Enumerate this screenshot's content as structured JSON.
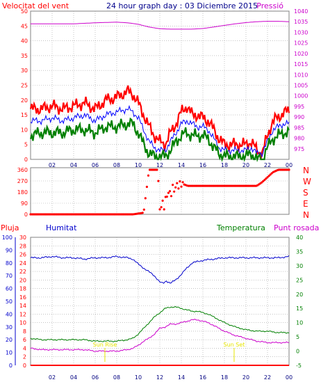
{
  "colors": {
    "background": "#ffffff",
    "panel_border": "#808080",
    "grid": "#a0a0a0",
    "wind_gust": "#ff0000",
    "wind_avg": "#0000ff",
    "wind_min": "#008000",
    "pressure": "#cc00cc",
    "direction": "#ff0000",
    "rain": "#ff0000",
    "humidity": "#0000cc",
    "temperature": "#008000",
    "dew_point": "#cc00cc",
    "sun_marker": "#e6e600",
    "title": "#00008b"
  },
  "chart_data": [
    {
      "id": "wind",
      "type": "line",
      "title": "24 hour graph day : 03 Diciembre 2015",
      "left_label": "Velocitat del vent",
      "right_label": "Pressió",
      "x_ticks": [
        "02",
        "04",
        "06",
        "08",
        "10",
        "12",
        "14",
        "16",
        "18",
        "20",
        "22",
        "00"
      ],
      "x_range_hours": [
        0,
        24
      ],
      "ylim_left": [
        0,
        50
      ],
      "y_ticks_left": [
        "0",
        "5",
        "10",
        "15",
        "20",
        "25",
        "30",
        "35",
        "40",
        "45",
        "50"
      ],
      "ylim_right": [
        970,
        1040
      ],
      "y_ticks_right": [
        "975",
        "980",
        "985",
        "990",
        "995",
        "1000",
        "1005",
        "1010",
        "1015",
        "1020",
        "1025",
        "1030",
        "1035",
        "1040"
      ],
      "grid": true,
      "series": [
        {
          "key": "gust",
          "hours": [
            0,
            1,
            2,
            3,
            4,
            5,
            6,
            7,
            8,
            9,
            9.5,
            10,
            10.5,
            11,
            11.5,
            12,
            12.5,
            13,
            13.5,
            14,
            14.5,
            15,
            15.5,
            16,
            16.5,
            17,
            17.5,
            18,
            19,
            20,
            20.5,
            21,
            21.5,
            22,
            22.5,
            23,
            23.5,
            24
          ],
          "values": [
            17,
            17,
            18,
            17,
            18,
            19,
            17,
            20,
            21,
            23,
            22,
            19,
            15,
            11,
            8,
            6,
            5,
            9,
            12,
            16,
            18,
            15,
            15,
            14,
            13,
            10,
            7,
            5,
            5,
            5,
            6,
            3,
            2,
            8,
            13,
            14,
            16,
            16
          ]
        },
        {
          "key": "avg",
          "hours": [
            0,
            1,
            2,
            3,
            4,
            5,
            6,
            7,
            8,
            9,
            9.5,
            10,
            10.5,
            11,
            11.5,
            12,
            12.5,
            13,
            13.5,
            14,
            14.5,
            15,
            15.5,
            16,
            16.5,
            17,
            17.5,
            18,
            19,
            20,
            20.5,
            21,
            21.5,
            22,
            22.5,
            23,
            23.5,
            24
          ],
          "values": [
            13,
            13,
            14,
            13,
            14,
            15,
            13,
            15,
            16,
            17,
            16,
            14,
            10,
            6,
            4,
            3,
            3,
            6,
            9,
            12,
            13,
            12,
            11,
            11,
            10,
            7,
            4,
            3,
            3,
            3,
            4,
            2,
            2,
            6,
            10,
            11,
            12,
            12
          ]
        },
        {
          "key": "min",
          "hours": [
            0,
            1,
            2,
            3,
            4,
            5,
            6,
            7,
            8,
            9,
            9.5,
            10,
            10.5,
            11,
            11.5,
            12,
            12.5,
            13,
            13.5,
            14,
            14.5,
            15,
            15.5,
            16,
            16.5,
            17,
            17.5,
            18,
            19,
            20,
            20.5,
            21,
            21.5,
            22,
            22.5,
            23,
            23.5,
            24
          ],
          "values": [
            8,
            9,
            9,
            9,
            10,
            10,
            9,
            11,
            11,
            12,
            12,
            9,
            5,
            2,
            1,
            1,
            1,
            3,
            6,
            8,
            9,
            8,
            8,
            8,
            7,
            4,
            2,
            1,
            1,
            1,
            2,
            0,
            0,
            4,
            7,
            8,
            9,
            9
          ]
        },
        {
          "key": "pressure",
          "axis": "right",
          "hours": [
            0,
            2,
            4,
            6,
            8,
            9,
            10,
            11,
            12,
            13,
            14,
            15,
            16,
            17,
            18,
            19,
            20,
            21,
            22,
            23,
            24
          ],
          "values": [
            1034,
            1034,
            1034,
            1034.5,
            1034.8,
            1034.5,
            1033.8,
            1032.5,
            1031.7,
            1031.5,
            1031.5,
            1031.5,
            1031.8,
            1032.5,
            1033.3,
            1034,
            1034.6,
            1035,
            1035.2,
            1035.2,
            1035
          ]
        }
      ]
    },
    {
      "id": "direction",
      "type": "scatter",
      "right_labels": [
        "N",
        "W",
        "S",
        "E",
        "N"
      ],
      "y_ticks_left": [
        "0",
        "90",
        "180",
        "270",
        "360"
      ],
      "ylim_left": [
        0,
        360
      ],
      "x_range_hours": [
        0,
        24
      ],
      "grid": true,
      "series": [
        {
          "key": "direction",
          "hours": [
            0,
            2,
            4,
            6,
            8,
            9.5,
            10.3,
            10.5,
            11,
            11.5,
            11.8,
            12,
            12.2,
            12.4,
            12.6,
            12.8,
            13,
            13.2,
            13.4,
            13.6,
            13.8,
            14,
            14.3,
            14.6,
            15,
            16,
            17,
            18,
            19,
            20,
            21,
            21.5,
            22,
            22.5,
            23,
            23.5,
            24
          ],
          "values": [
            0,
            0,
            0,
            0,
            0,
            0,
            10,
            15,
            360,
            360,
            360,
            40,
            90,
            70,
            140,
            180,
            160,
            210,
            200,
            240,
            230,
            250,
            240,
            230,
            230,
            230,
            230,
            230,
            230,
            230,
            230,
            260,
            300,
            340,
            360,
            360,
            360
          ]
        }
      ]
    },
    {
      "id": "humidity_temp",
      "type": "line",
      "labels": {
        "rain": "Pluja",
        "humidity": "Humitat",
        "temperature": "Temperatura",
        "dew_point": "Punt rosada"
      },
      "x_ticks": [
        "02",
        "04",
        "06",
        "08",
        "10",
        "12",
        "14",
        "16",
        "18",
        "20",
        "22",
        "00"
      ],
      "x_range_hours": [
        0,
        24
      ],
      "ylim_humidity": [
        0,
        100
      ],
      "y_ticks_humidity": [
        "0",
        "10",
        "20",
        "30",
        "40",
        "50",
        "60",
        "70",
        "80",
        "90",
        "100"
      ],
      "ylim_rain": [
        0,
        30
      ],
      "y_ticks_rain": [
        "0",
        "2",
        "4",
        "6",
        "8",
        "10",
        "12",
        "14",
        "16",
        "18",
        "20",
        "22",
        "24",
        "26",
        "28",
        "30"
      ],
      "ylim_temp": [
        -5,
        40
      ],
      "y_ticks_temp": [
        "-5",
        "0",
        "5",
        "10",
        "15",
        "20",
        "25",
        "30",
        "35",
        "40"
      ],
      "sun_labels": {
        "rise": "Sun Rise",
        "set": "Sun Set"
      },
      "sun_hours": {
        "rise": 6.9,
        "set": 18.9
      },
      "grid": true,
      "series": [
        {
          "key": "humidity",
          "axis": "humidity",
          "hours": [
            0,
            1,
            2,
            3,
            4,
            5,
            6,
            7,
            8,
            9,
            9.5,
            10,
            10.5,
            11,
            11.5,
            12,
            12.3,
            12.6,
            13,
            13.5,
            14,
            14.5,
            15,
            15.5,
            16,
            17,
            18,
            19,
            20,
            21,
            22,
            23,
            24
          ],
          "values": [
            84,
            84,
            85,
            84,
            84,
            83,
            84,
            84,
            85,
            84,
            83,
            79,
            76,
            73,
            70,
            65,
            64,
            66,
            64,
            67,
            71,
            76,
            80,
            81,
            82,
            83,
            84,
            84,
            84,
            84,
            84,
            84,
            85
          ]
        },
        {
          "key": "temperature",
          "axis": "temp",
          "hours": [
            0,
            1,
            2,
            3,
            4,
            5,
            6,
            7,
            8,
            9,
            9.5,
            10,
            10.5,
            11,
            11.5,
            12,
            12.5,
            13,
            13.5,
            14,
            14.5,
            15,
            15.5,
            16,
            16.5,
            17,
            17.5,
            18,
            19,
            20,
            21,
            22,
            23,
            24
          ],
          "values": [
            4.5,
            4,
            4,
            4,
            4,
            4,
            3.5,
            3.5,
            3.5,
            4,
            4.5,
            6,
            8,
            10,
            12,
            13.5,
            15,
            15.5,
            15.5,
            15,
            14.5,
            14,
            14,
            13.5,
            13,
            12,
            11,
            10,
            8.5,
            7.5,
            7,
            7,
            6.5,
            6.5
          ]
        },
        {
          "key": "dew_point",
          "axis": "temp",
          "hours": [
            0,
            1,
            2,
            3,
            4,
            5,
            6,
            7,
            8,
            9,
            9.5,
            10,
            10.5,
            11,
            11.5,
            12,
            12.5,
            13,
            13.5,
            14,
            14.5,
            15,
            15.5,
            16,
            16.5,
            17,
            17.5,
            18,
            19,
            20,
            21,
            22,
            23,
            24
          ],
          "values": [
            1,
            0.5,
            0.5,
            0.5,
            0.5,
            0.5,
            0,
            0,
            0,
            0.5,
            1,
            2,
            3.5,
            4.5,
            6,
            8,
            8.5,
            9.5,
            9.5,
            10,
            10.5,
            11,
            11,
            10.5,
            10,
            9,
            8,
            7,
            5.5,
            4.5,
            3.5,
            3,
            3,
            3
          ]
        },
        {
          "key": "rain",
          "axis": "rain",
          "hours": [
            0,
            24
          ],
          "values": [
            0,
            0
          ]
        }
      ]
    }
  ]
}
